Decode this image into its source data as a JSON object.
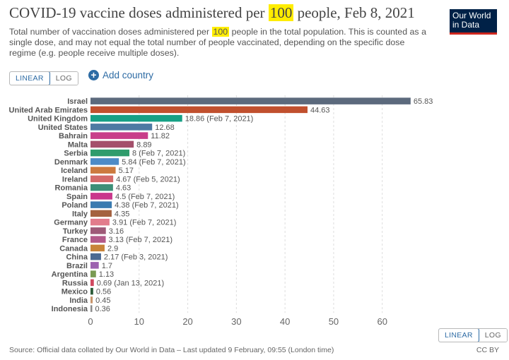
{
  "header": {
    "title_before": "COVID-19 vaccine doses administered per ",
    "title_highlight": "100",
    "title_after": " people, Feb 8, 2021",
    "subtitle_before": "Total number of vaccination doses administered per ",
    "subtitle_highlight": "100",
    "subtitle_after": " people in the total population. This is counted as a single dose, and may not equal the total number of people vaccinated, depending on the specific dose regime (e.g. people receive multiple doses).",
    "logo_line1": "Our World",
    "logo_line2": "in Data"
  },
  "controls": {
    "linear_label": "LINEAR",
    "log_label": "LOG",
    "add_country_label": "Add country"
  },
  "footer": {
    "source": "Source: Official data collated by Our World in Data – Last updated 9 February, 09:55 (London time)",
    "license": "CC BY"
  },
  "colors": {
    "accent": "#2d6ba4",
    "logo_bg": "#002147",
    "logo_bar": "#ce261e",
    "highlight": "#ffed00"
  },
  "chart_data": {
    "type": "bar",
    "orientation": "horizontal",
    "xlim": [
      0,
      66
    ],
    "xticks": [
      0,
      10,
      20,
      30,
      40,
      50,
      60
    ],
    "grid": true,
    "categories": [
      "Israel",
      "United Arab Emirates",
      "United Kingdom",
      "United States",
      "Bahrain",
      "Malta",
      "Serbia",
      "Denmark",
      "Iceland",
      "Ireland",
      "Romania",
      "Spain",
      "Poland",
      "Italy",
      "Germany",
      "Turkey",
      "France",
      "Canada",
      "China",
      "Brazil",
      "Argentina",
      "Russia",
      "Mexico",
      "India",
      "Indonesia"
    ],
    "values": [
      65.83,
      44.63,
      18.86,
      12.68,
      11.82,
      8.89,
      8,
      5.84,
      5.17,
      4.67,
      4.63,
      4.5,
      4.38,
      4.35,
      3.91,
      3.16,
      3.13,
      2.9,
      2.17,
      1.7,
      1.13,
      0.69,
      0.56,
      0.45,
      0.36
    ],
    "labels": [
      "65.83",
      "44.63",
      "18.86 (Feb 7, 2021)",
      "12.68",
      "11.82",
      "8.89",
      "8 (Feb 7, 2021)",
      "5.84 (Feb 7, 2021)",
      "5.17",
      "4.67 (Feb 5, 2021)",
      "4.63",
      "4.5 (Feb 7, 2021)",
      "4.38 (Feb 7, 2021)",
      "4.35",
      "3.91 (Feb 7, 2021)",
      "3.16",
      "3.13 (Feb 7, 2021)",
      "2.9",
      "2.17 (Feb 3, 2021)",
      "1.7",
      "1.13",
      "0.69 (Jan 13, 2021)",
      "0.56",
      "0.45",
      "0.36"
    ],
    "colors": [
      "#5c6a7d",
      "#c1502e",
      "#16a085",
      "#4e7aa3",
      "#c83e8a",
      "#a4506b",
      "#2f9c6c",
      "#4c8bc7",
      "#cc7a3f",
      "#d46a6a",
      "#3d8f78",
      "#c9378c",
      "#3a7bb0",
      "#a4613f",
      "#e27c8c",
      "#9e5a78",
      "#b35a8a",
      "#c8843a",
      "#4c6a92",
      "#9c62b0",
      "#7a9a52",
      "#d0485f",
      "#2e5c3a",
      "#c8956b",
      "#8a8a8a"
    ]
  }
}
